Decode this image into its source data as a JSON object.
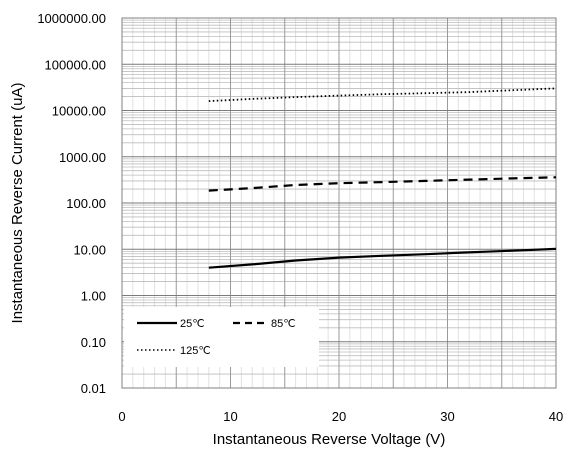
{
  "chart_data": {
    "type": "line",
    "title": "",
    "xlabel": "Instantaneous  Reverse Voltage (V)",
    "ylabel": "Instantaneous Reverse Current (uA)",
    "xlim": [
      0,
      40
    ],
    "ylim": [
      0.01,
      1000000
    ],
    "y_scale": "log",
    "x_ticks": [
      0,
      10,
      20,
      30,
      40
    ],
    "y_ticks": [
      0.01,
      0.1,
      1,
      10,
      100,
      1000,
      10000,
      100000,
      1000000
    ],
    "y_tick_labels": [
      "0.01",
      "0.10",
      "1.00",
      "10.00",
      "100.00",
      "1000.00",
      "10000.00",
      "100000.00",
      "1000000.00"
    ],
    "grid": true,
    "legend_position": "bottom-left",
    "series": [
      {
        "name": "25℃",
        "line_style": "solid",
        "color": "#000000",
        "x": [
          8,
          12,
          16,
          20,
          24,
          28,
          32,
          36,
          40
        ],
        "y": [
          4.0,
          4.7,
          5.7,
          6.6,
          7.2,
          7.8,
          8.6,
          9.3,
          10.2
        ]
      },
      {
        "name": "85℃",
        "line_style": "dashed",
        "color": "#000000",
        "x": [
          8,
          12,
          16,
          20,
          24,
          28,
          32,
          36,
          40
        ],
        "y": [
          185,
          210,
          245,
          268,
          283,
          300,
          320,
          340,
          360
        ]
      },
      {
        "name": "125℃",
        "line_style": "dotted",
        "color": "#000000",
        "x": [
          8,
          12,
          16,
          20,
          24,
          28,
          32,
          36,
          40
        ],
        "y": [
          16000,
          17800,
          19500,
          21000,
          22500,
          23700,
          25000,
          27500,
          30000
        ]
      }
    ]
  }
}
